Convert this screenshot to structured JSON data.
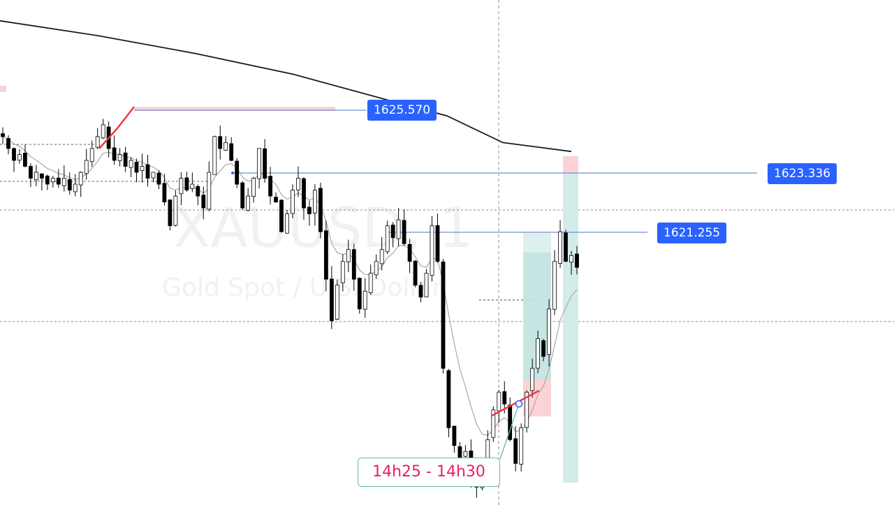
{
  "watermark": {
    "symbol": "XAUUSD, 1",
    "description": "Gold Spot / U.S. Dollar"
  },
  "price_tags": [
    {
      "id": "tag-high",
      "label": "1625.570"
    },
    {
      "id": "tag-mid",
      "label": "1623.336"
    },
    {
      "id": "tag-low",
      "label": "1621.255"
    }
  ],
  "time_callout": {
    "label": "14h25 - 14h30"
  },
  "colors": {
    "candle": "#000000",
    "moving_average_slow": "#1a1a1a",
    "moving_average_fast": "#a0a0a0",
    "price_line": "#2962ff",
    "callout_border": "#66b8b4",
    "callout_text": "#e91e63",
    "trend_line": "#f23645",
    "profit_zone": "#d4ece9",
    "loss_zone": "#fbd3d5"
  },
  "chart_data": {
    "type": "candlestick",
    "symbol": "XAUUSD",
    "timeframe": "1",
    "y_range": [
      1618.5,
      1627.0
    ],
    "levels": [
      1625.57,
      1623.336,
      1621.255
    ],
    "close_path": [
      1624.7,
      1624.5,
      1624.3,
      1624.4,
      1624.2,
      1624.0,
      1624.1,
      1624.0,
      1623.9,
      1624.0,
      1623.9,
      1624.0,
      1623.8,
      1623.9,
      1624.1,
      1624.3,
      1624.5,
      1624.7,
      1624.9,
      1624.5,
      1624.3,
      1624.4,
      1624.2,
      1624.3,
      1624.1,
      1624.2,
      1624.0,
      1624.1,
      1623.9,
      1623.6,
      1623.2,
      1623.7,
      1624.0,
      1623.8,
      1623.9,
      1623.7,
      1623.5,
      1624.1,
      1624.7,
      1624.5,
      1624.6,
      1624.3,
      1623.9,
      1623.5,
      1623.7,
      1624.0,
      1624.5,
      1624.0,
      1623.7,
      1623.6,
      1623.1,
      1623.4,
      1623.8,
      1624.0,
      1623.5,
      1623.4,
      1623.8,
      1623.1,
      1622.3,
      1621.6,
      1622.2,
      1622.6,
      1622.8,
      1622.3,
      1621.8,
      1622.1,
      1622.4,
      1622.6,
      1622.8,
      1623.2,
      1623.0,
      1623.3,
      1622.9,
      1622.6,
      1622.2,
      1622.0,
      1622.4,
      1623.2,
      1622.6,
      1620.8,
      1619.8,
      1619.5,
      1619.3,
      1619.4,
      1619.0,
      1618.8,
      1619.1,
      1619.6,
      1620.1,
      1620.4,
      1620.2,
      1619.6,
      1619.2,
      1619.8,
      1620.4,
      1620.8,
      1621.3,
      1621.0,
      1621.8,
      1622.6,
      1623.1,
      1622.6,
      1622.7,
      1622.5
    ],
    "moving_average_slow": [
      [
        0,
        1626.65
      ],
      [
        140,
        1626.4
      ],
      [
        280,
        1626.1
      ],
      [
        420,
        1625.75
      ],
      [
        560,
        1625.3
      ],
      [
        640,
        1625.05
      ],
      [
        720,
        1624.6
      ],
      [
        818,
        1624.45
      ]
    ],
    "time_window_label": "14h25 - 14h30"
  }
}
